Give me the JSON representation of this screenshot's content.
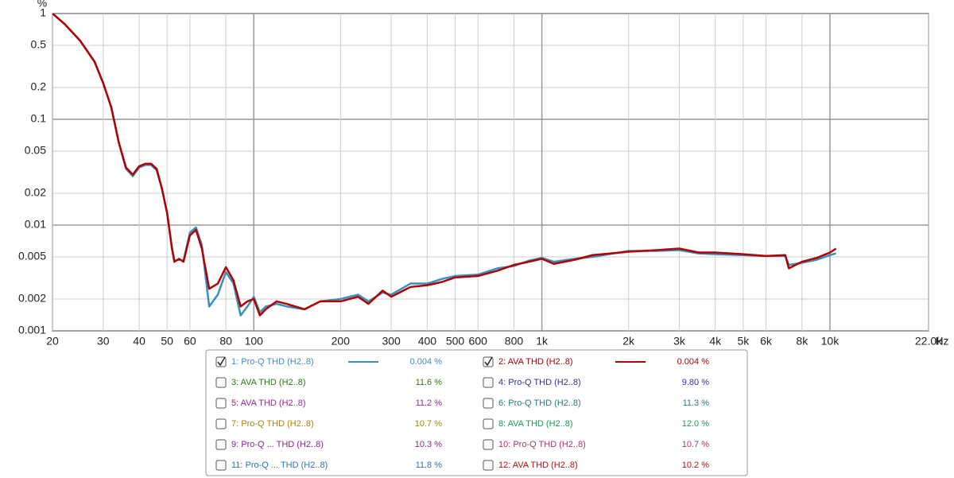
{
  "chart_data": {
    "type": "line",
    "y_label": "%",
    "x_label": "Hz",
    "log_x": true,
    "log_y": true,
    "grid": true,
    "xlim": [
      20,
      22000
    ],
    "ylim": [
      0.001,
      1
    ],
    "xticks": [
      20,
      30,
      40,
      50,
      60,
      80,
      100,
      200,
      300,
      400,
      500,
      600,
      800,
      {
        "value": 1000,
        "label": "1k"
      },
      {
        "value": 2000,
        "label": "2k"
      },
      {
        "value": 3000,
        "label": "3k"
      },
      {
        "value": 4000,
        "label": "4k"
      },
      {
        "value": 5000,
        "label": "5k"
      },
      {
        "value": 6000,
        "label": "6k"
      },
      {
        "value": 8000,
        "label": "8k"
      },
      {
        "value": 10000,
        "label": "10k"
      },
      {
        "value": 22000,
        "label": "22.0k"
      }
    ],
    "yticks": [
      0.001,
      0.002,
      0.005,
      0.01,
      0.02,
      0.05,
      0.1,
      0.2,
      0.5,
      1
    ],
    "x": [
      20,
      22,
      25,
      28,
      30,
      32,
      34,
      36,
      38,
      40,
      42,
      44,
      46,
      48,
      50,
      52,
      53,
      55,
      57,
      60,
      63,
      66,
      70,
      75,
      80,
      85,
      90,
      95,
      100,
      105,
      110,
      120,
      130,
      150,
      170,
      200,
      230,
      250,
      280,
      300,
      350,
      400,
      450,
      500,
      600,
      700,
      800,
      900,
      1000,
      1100,
      1300,
      1500,
      2000,
      2500,
      3000,
      3500,
      4000,
      5000,
      6000,
      7000,
      7200,
      8000,
      9000,
      10000,
      10500
    ],
    "series": [
      {
        "name": "1: Pro-Q THD (H2..8)",
        "color": "#3a8fc0",
        "checked": true,
        "readout": "0.004 %",
        "values": [
          1.0,
          0.8,
          0.55,
          0.35,
          0.22,
          0.13,
          0.06,
          0.034,
          0.029,
          0.035,
          0.037,
          0.037,
          0.033,
          0.022,
          0.013,
          0.006,
          0.0046,
          0.0047,
          0.0046,
          0.0085,
          0.0095,
          0.0065,
          0.0017,
          0.0022,
          0.0036,
          0.0028,
          0.0014,
          0.0017,
          0.0021,
          0.0015,
          0.0017,
          0.0018,
          0.0017,
          0.0016,
          0.0019,
          0.002,
          0.0022,
          0.0019,
          0.0023,
          0.0022,
          0.0028,
          0.0028,
          0.0031,
          0.0033,
          0.0034,
          0.0039,
          0.0041,
          0.0046,
          0.0049,
          0.0045,
          0.0048,
          0.005,
          0.0057,
          0.0057,
          0.0058,
          0.0054,
          0.0053,
          0.0052,
          0.0051,
          0.0051,
          0.0042,
          0.0044,
          0.0047,
          0.0052,
          0.0054
        ]
      },
      {
        "name": "2: AVA THD (H2..8)",
        "color": "#b00000",
        "checked": true,
        "readout": "0.004 %",
        "values": [
          1.0,
          0.8,
          0.55,
          0.35,
          0.22,
          0.13,
          0.06,
          0.035,
          0.03,
          0.036,
          0.038,
          0.038,
          0.034,
          0.022,
          0.013,
          0.006,
          0.0045,
          0.0048,
          0.0045,
          0.008,
          0.009,
          0.006,
          0.0025,
          0.0028,
          0.004,
          0.003,
          0.0017,
          0.0019,
          0.002,
          0.0014,
          0.0016,
          0.0019,
          0.0018,
          0.0016,
          0.0019,
          0.0019,
          0.0021,
          0.0018,
          0.0024,
          0.0021,
          0.0026,
          0.0027,
          0.0029,
          0.0032,
          0.0033,
          0.0037,
          0.0042,
          0.0045,
          0.0048,
          0.0043,
          0.0047,
          0.0052,
          0.0056,
          0.0058,
          0.006,
          0.0055,
          0.0055,
          0.0053,
          0.0051,
          0.0052,
          0.0039,
          0.0045,
          0.0049,
          0.0055,
          0.006
        ]
      }
    ],
    "other_traces": [
      {
        "name": "3: AVA THD (H2..8)",
        "readout": "11.6 %",
        "color": "#2a7a10"
      },
      {
        "name": "4: Pro-Q THD (H2..8)",
        "readout": "9.80 %",
        "color": "#3030a0"
      },
      {
        "name": "5: AVA THD (H2..8)",
        "readout": "11.2 %",
        "color": "#a020a0"
      },
      {
        "name": "6: Pro-Q THD (H2..8)",
        "readout": "11.3 %",
        "color": "#207a7a"
      },
      {
        "name": "7: Pro-Q THD (H2..8)",
        "readout": "10.7 %",
        "color": "#b08000"
      },
      {
        "name": "8: AVA THD (H2..8)",
        "readout": "12.0 %",
        "color": "#1a9a50"
      },
      {
        "name": "9: Pro-Q ... THD (H2..8)",
        "readout": "10.3 %",
        "color": "#8a20a0"
      },
      {
        "name": "10: Pro-Q THD (H2..8)",
        "readout": "10.7 %",
        "color": "#b03070"
      },
      {
        "name": "11: Pro-Q ... THD (H2..8)",
        "readout": "11.8 %",
        "color": "#3070b0"
      },
      {
        "name": "12: AVA THD (H2..8)",
        "readout": "10.2 %",
        "color": "#b01010"
      }
    ]
  }
}
